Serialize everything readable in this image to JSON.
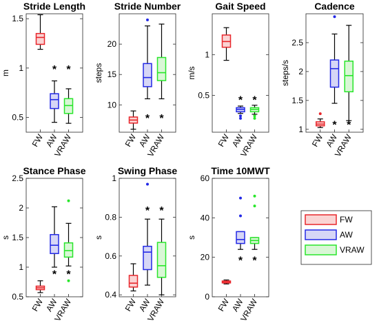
{
  "chart_data": [
    {
      "type": "box",
      "title": "Stride Length",
      "ylabel": "m",
      "ylim": [
        0.35,
        1.55
      ],
      "yticks": [
        0.5,
        1,
        1.5
      ],
      "ytick_labels": [
        "0.5",
        "1",
        "1.5"
      ],
      "categories": [
        "FW",
        "AW",
        "VRAW"
      ],
      "boxes": [
        {
          "min": 1.19,
          "q1": 1.24,
          "median": 1.31,
          "q3": 1.35,
          "max": 1.54,
          "outliers": [],
          "stars": []
        },
        {
          "min": 0.45,
          "q1": 0.59,
          "median": 0.68,
          "q3": 0.74,
          "max": 0.87,
          "outliers": [],
          "stars": [
            1.0
          ]
        },
        {
          "min": 0.44,
          "q1": 0.54,
          "median": 0.62,
          "q3": 0.69,
          "max": 0.79,
          "outliers": [],
          "stars": [
            1.0
          ]
        }
      ]
    },
    {
      "type": "box",
      "title": "Stride Number",
      "ylabel": "steps",
      "ylim": [
        5.5,
        25
      ],
      "yticks": [
        10,
        15,
        20
      ],
      "ytick_labels": [
        "10",
        "15",
        "20"
      ],
      "categories": [
        "FW",
        "AW",
        "VRAW"
      ],
      "boxes": [
        {
          "min": 6.0,
          "q1": 7.0,
          "median": 7.5,
          "q3": 8.0,
          "max": 9.0,
          "outliers": [],
          "stars": []
        },
        {
          "min": 11.0,
          "q1": 13.0,
          "median": 14.5,
          "q3": 16.8,
          "max": 23.0,
          "outliers": [
            24.0
          ],
          "stars": [
            8.0
          ]
        },
        {
          "min": 11.0,
          "q1": 14.0,
          "median": 15.3,
          "q3": 17.8,
          "max": 23.3,
          "outliers": [],
          "stars": [
            8.0
          ]
        }
      ]
    },
    {
      "type": "box",
      "title": "Gait Speed",
      "ylabel": "m/s",
      "ylim": [
        0.05,
        1.5
      ],
      "yticks": [
        0.5,
        1
      ],
      "ytick_labels": [
        "0.5",
        "1"
      ],
      "categories": [
        "FW",
        "AW",
        "VRAW"
      ],
      "boxes": [
        {
          "min": 0.93,
          "q1": 1.09,
          "median": 1.16,
          "q3": 1.24,
          "max": 1.33,
          "outliers": [],
          "stars": []
        },
        {
          "min": 0.28,
          "q1": 0.3,
          "median": 0.33,
          "q3": 0.35,
          "max": 0.37,
          "outliers": [
            0.22,
            0.25
          ],
          "stars": [
            0.46
          ]
        },
        {
          "min": 0.27,
          "q1": 0.3,
          "median": 0.33,
          "q3": 0.35,
          "max": 0.38,
          "outliers": [
            0.22,
            0.25
          ],
          "stars": [
            0.46
          ]
        }
      ]
    },
    {
      "type": "box",
      "title": "Cadence",
      "ylabel": "steps/s",
      "ylim": [
        0.95,
        3.0
      ],
      "yticks": [
        1,
        1.5,
        2,
        2.5
      ],
      "ytick_labels": [
        "1",
        "1.5",
        "2",
        "2.5"
      ],
      "categories": [
        "FW",
        "AW",
        "VRAW"
      ],
      "boxes": [
        {
          "min": 1.03,
          "q1": 1.06,
          "median": 1.09,
          "q3": 1.13,
          "max": 1.18,
          "outliers": [
            1.27
          ],
          "stars": []
        },
        {
          "min": 1.45,
          "q1": 1.73,
          "median": 2.05,
          "q3": 2.2,
          "max": 2.65,
          "outliers": [
            2.95
          ],
          "stars": [
            1.1
          ]
        },
        {
          "min": 1.15,
          "q1": 1.65,
          "median": 1.93,
          "q3": 2.18,
          "max": 2.8,
          "outliers": [],
          "stars": [
            1.1
          ]
        }
      ]
    },
    {
      "type": "box",
      "title": "Stance Phase",
      "ylabel": "s",
      "ylim": [
        0.5,
        2.5
      ],
      "yticks": [
        0.5,
        1,
        1.5,
        2,
        2.5
      ],
      "ytick_labels": [
        "0.5",
        "1",
        "1.5",
        "2",
        "2.5"
      ],
      "categories": [
        "FW",
        "AW",
        "VRAW"
      ],
      "boxes": [
        {
          "min": 0.57,
          "q1": 0.62,
          "median": 0.65,
          "q3": 0.68,
          "max": 0.77,
          "outliers": [],
          "stars": []
        },
        {
          "min": 1.0,
          "q1": 1.23,
          "median": 1.37,
          "q3": 1.55,
          "max": 2.02,
          "outliers": [],
          "stars": [
            0.9
          ]
        },
        {
          "min": 1.02,
          "q1": 1.17,
          "median": 1.28,
          "q3": 1.41,
          "max": 1.74,
          "outliers": [
            2.12,
            0.77
          ],
          "stars": [
            0.9
          ]
        }
      ]
    },
    {
      "type": "box",
      "title": "Swing Phase",
      "ylabel": "s",
      "ylim": [
        0.39,
        1.0
      ],
      "yticks": [
        0.4,
        0.6,
        0.8,
        1
      ],
      "ytick_labels": [
        "0.4",
        "0.6",
        "0.8",
        "1"
      ],
      "categories": [
        "FW",
        "AW",
        "VRAW"
      ],
      "boxes": [
        {
          "min": 0.42,
          "q1": 0.44,
          "median": 0.46,
          "q3": 0.5,
          "max": 0.56,
          "outliers": [],
          "stars": []
        },
        {
          "min": 0.45,
          "q1": 0.53,
          "median": 0.62,
          "q3": 0.65,
          "max": 0.79,
          "outliers": [
            0.97
          ],
          "stars": [
            0.84
          ]
        },
        {
          "min": 0.4,
          "q1": 0.49,
          "median": 0.55,
          "q3": 0.67,
          "max": 0.79,
          "outliers": [],
          "stars": [
            0.84
          ]
        }
      ]
    },
    {
      "type": "box",
      "title": "Time 10MWT",
      "ylabel": "s",
      "ylim": [
        0,
        60
      ],
      "yticks": [
        0,
        20,
        40,
        60
      ],
      "ytick_labels": [
        "0",
        "20",
        "40",
        "60"
      ],
      "categories": [
        "FW",
        "AW",
        "VRAW"
      ],
      "boxes": [
        {
          "min": 6.5,
          "q1": 7.0,
          "median": 7.5,
          "q3": 8.0,
          "max": 8.5,
          "outliers": [],
          "stars": []
        },
        {
          "min": 24.0,
          "q1": 27.0,
          "median": 29.0,
          "q3": 33.0,
          "max": 33.0,
          "outliers": [
            41.0,
            50.0
          ],
          "stars": [
            19.0
          ]
        },
        {
          "min": 24.0,
          "q1": 27.0,
          "median": 28.5,
          "q3": 30.0,
          "max": 30.0,
          "outliers": [
            46.0,
            51.0
          ],
          "stars": [
            19.0
          ]
        }
      ]
    }
  ],
  "legend": [
    {
      "label": "FW",
      "stroke": "#e8262b",
      "fill": "#fad4d4"
    },
    {
      "label": "AW",
      "stroke": "#2228e6",
      "fill": "#d6d6f6"
    },
    {
      "label": "VRAW",
      "stroke": "#28e62a",
      "fill": "#d9f7d6"
    }
  ],
  "colors": {
    "FW": {
      "stroke": "#e8262b",
      "fill": "#fad4d4"
    },
    "AW": {
      "stroke": "#2228e6",
      "fill": "#d6d6f6"
    },
    "VRAW": {
      "stroke": "#28e62a",
      "fill": "#d9f7d6"
    }
  }
}
